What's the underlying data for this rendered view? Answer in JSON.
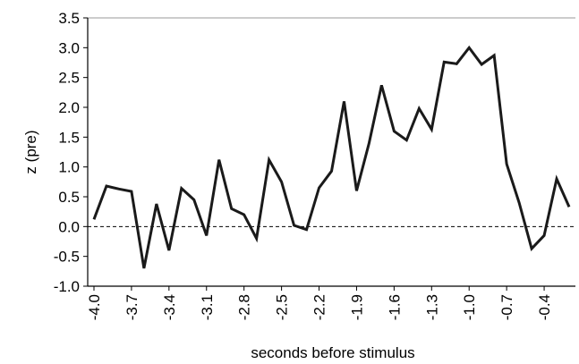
{
  "chart_data": {
    "type": "line",
    "x_label": "seconds before stimulus",
    "y_label": "z (pre)",
    "x": [
      -4.0,
      -3.9,
      -3.8,
      -3.7,
      -3.6,
      -3.5,
      -3.4,
      -3.3,
      -3.2,
      -3.1,
      -3.0,
      -2.9,
      -2.8,
      -2.7,
      -2.6,
      -2.5,
      -2.4,
      -2.3,
      -2.2,
      -2.1,
      -2.0,
      -1.9,
      -1.8,
      -1.7,
      -1.6,
      -1.5,
      -1.4,
      -1.3,
      -1.2,
      -1.1,
      -1.0,
      -0.9,
      -0.8,
      -0.7,
      -0.6,
      -0.5,
      -0.4,
      -0.3,
      -0.2
    ],
    "series": [
      {
        "color": "#1a1a1a",
        "values": [
          0.12,
          0.68,
          0.63,
          0.59,
          -0.7,
          0.38,
          -0.4,
          0.64,
          0.45,
          -0.15,
          1.12,
          0.3,
          0.2,
          -0.2,
          1.12,
          0.75,
          0.02,
          -0.05,
          0.65,
          0.93,
          2.1,
          0.6,
          1.4,
          2.37,
          1.6,
          1.45,
          1.98,
          1.63,
          2.76,
          2.73,
          3.0,
          2.72,
          2.87,
          1.05,
          0.4,
          -0.37,
          -0.15,
          0.8,
          0.33
        ]
      }
    ],
    "xlim": [
      -4.05,
      -0.15
    ],
    "xticks": [
      {
        "value": -4,
        "label": "-4.0"
      },
      -3.7,
      -3.4,
      -3.1,
      -2.8,
      -2.5,
      -2.2,
      -1.9,
      -1.6,
      -1.3,
      {
        "value": -1,
        "label": "-1.0"
      },
      -0.7,
      -0.4
    ],
    "ylim": [
      -1,
      3.5
    ],
    "yticks": [
      {
        "value": -1,
        "label": "-1.0"
      },
      -0.5,
      {
        "value": 0,
        "label": "0.0"
      },
      0.5,
      {
        "value": 1,
        "label": "1.0"
      },
      1.5,
      {
        "value": 2,
        "label": "2.0"
      },
      2.5,
      {
        "value": 3,
        "label": "3.0"
      },
      3.5
    ],
    "zero_line": true
  }
}
